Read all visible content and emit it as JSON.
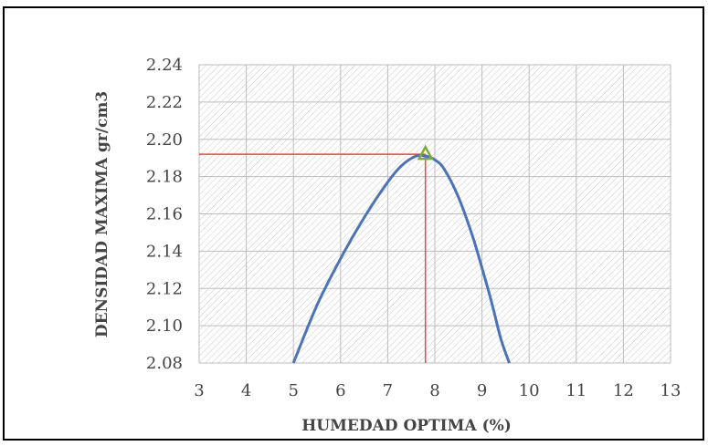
{
  "chart_data": {
    "type": "line",
    "title": "",
    "xlabel": "HUMEDAD OPTIMA (%)",
    "ylabel": "DENSIDAD MAXIMA gr/cm3",
    "xlim": [
      3,
      13
    ],
    "ylim": [
      2.08,
      2.24
    ],
    "x_ticks": [
      "3",
      "4",
      "5",
      "6",
      "7",
      "8",
      "9",
      "10",
      "11",
      "12",
      "13"
    ],
    "y_ticks": [
      "2.08",
      "2.10",
      "2.12",
      "2.14",
      "2.16",
      "2.18",
      "2.20",
      "2.22",
      "2.24"
    ],
    "grid": true,
    "legend": "none",
    "series": [
      {
        "color": "#4a73b8",
        "x": [
          5.0,
          5.5,
          6.0,
          6.5,
          7.0,
          7.3,
          7.6,
          7.8,
          8.0,
          8.2,
          8.5,
          8.8,
          9.0,
          9.2,
          9.4,
          9.58
        ],
        "y": [
          2.08,
          2.111,
          2.136,
          2.158,
          2.177,
          2.186,
          2.191,
          2.191,
          2.189,
          2.184,
          2.169,
          2.148,
          2.131,
          2.113,
          2.093,
          2.08
        ]
      }
    ],
    "optimum_marker": {
      "x": 7.8,
      "y": 2.192,
      "shape": "triangle",
      "color": "#7dab3c"
    },
    "reference_lines": {
      "color": "#e8483f",
      "x": 7.8,
      "y": 2.192
    },
    "plot_background": "hatched"
  }
}
